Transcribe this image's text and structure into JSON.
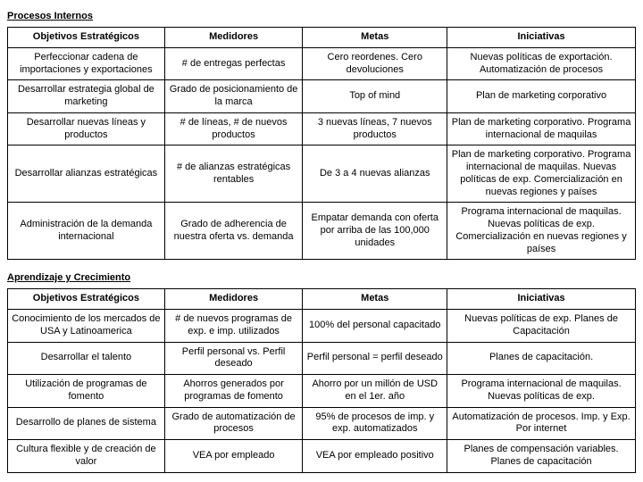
{
  "section1": {
    "title": "Procesos Internos",
    "headers": [
      "Objetivos Estratégicos",
      "Medidores",
      "Metas",
      "Iniciativas"
    ],
    "rows": [
      [
        "Perfeccionar cadena de importaciones y exportaciones",
        "# de entregas perfectas",
        "Cero reordenes. Cero devoluciones",
        "Nuevas políticas de exportación. Automatización de procesos"
      ],
      [
        "Desarrollar estrategia global de marketing",
        "Grado de posicionamiento de la marca",
        "Top of mind",
        "Plan de marketing corporativo"
      ],
      [
        "Desarrollar nuevas líneas y productos",
        "# de líneas, # de nuevos productos",
        "3 nuevas líneas, 7 nuevos productos",
        "Plan de marketing corporativo. Programa internacional de maquilas"
      ],
      [
        "Desarrollar alianzas estratégicas",
        "# de alianzas estratégicas rentables",
        "De 3 a 4 nuevas alianzas",
        "Plan de marketing corporativo. Programa internacional de maquilas. Nuevas políticas de exp. Comercialización en nuevas regiones y países"
      ],
      [
        "Administración de la demanda internacional",
        "Grado de adherencia de nuestra oferta vs. demanda",
        "Empatar demanda con oferta por arriba de las 100,000 unidades",
        "Programa internacional de maquilas. Nuevas políticas de exp. Comercialización en nuevas regiones y países"
      ]
    ]
  },
  "section2": {
    "title": "Aprendizaje y Crecimiento",
    "headers": [
      "Objetivos Estratégicos",
      "Medidores",
      "Metas",
      "Iniciativas"
    ],
    "rows": [
      [
        "Conocimiento de los mercados de USA y Latinoamerica",
        "# de nuevos programas de exp. e imp. utilizados",
        "100% del personal capacitado",
        "Nuevas políticas de exp. Planes de Capacitación"
      ],
      [
        "Desarrollar el talento",
        "Perfil personal vs. Perfil deseado",
        "Perfil personal = perfil deseado",
        "Planes de capacitación."
      ],
      [
        "Utilización de programas de fomento",
        "Ahorros generados por programas de fomento",
        "Ahorro por un millón de USD en el 1er. año",
        "Programa internacional de maquilas. Nuevas políticas de exp."
      ],
      [
        "Desarrollo de planes de sistema",
        "Grado de automatización de procesos",
        "95% de procesos de imp. y exp. automatizados",
        "Automatización de procesos. Imp. y Exp. Por internet"
      ],
      [
        "Cultura flexible y de creación de valor",
        "VEA por empleado",
        "VEA por empleado positivo",
        "Planes de compensación variables. Planes de capacitación"
      ]
    ]
  }
}
